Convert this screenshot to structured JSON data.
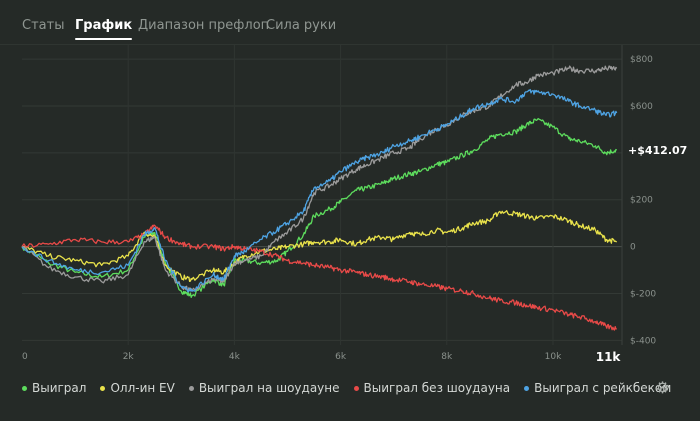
{
  "tabs": [
    {
      "label": "Статы",
      "active": false
    },
    {
      "label": "График",
      "active": true
    },
    {
      "label": "Диапазон префлоп",
      "active": false
    },
    {
      "label": "Сила руки",
      "active": false
    }
  ],
  "settings_icon": "gear-icon",
  "chart_data": {
    "type": "line",
    "x_unit": "hands",
    "xlim": [
      0,
      11300
    ],
    "ylim": [
      -420,
      860
    ],
    "x_ticks": [
      {
        "value": 0,
        "label": "0"
      },
      {
        "value": 2000,
        "label": "2k"
      },
      {
        "value": 4000,
        "label": "4k"
      },
      {
        "value": 6000,
        "label": "6k"
      },
      {
        "value": 8000,
        "label": "8k"
      },
      {
        "value": 10000,
        "label": "10k"
      },
      {
        "value": 11000,
        "label": "11k"
      }
    ],
    "y_ticks": [
      {
        "value": 800,
        "label": "$800"
      },
      {
        "value": 600,
        "label": "$600"
      },
      {
        "value": 200,
        "label": "$200"
      },
      {
        "value": 0,
        "label": "0"
      },
      {
        "value": -200,
        "label": "$-200"
      },
      {
        "value": -400,
        "label": "$-400"
      }
    ],
    "gridlines_y": [
      800,
      600,
      400,
      200,
      0,
      -200,
      -400
    ],
    "end_label": "+$412.07",
    "end_label_value": 412.07,
    "grid": true,
    "legend_position": "bottom",
    "series": [
      {
        "name": "Выиграл",
        "color": "#5ddc5d",
        "x": [
          0,
          500,
          1000,
          1500,
          2000,
          2300,
          2500,
          2700,
          3000,
          3200,
          3600,
          3800,
          4000,
          4200,
          4500,
          4800,
          5000,
          5300,
          5500,
          5800,
          6000,
          6300,
          6500,
          6800,
          7000,
          7300,
          7500,
          7800,
          8000,
          8300,
          8500,
          8800,
          9000,
          9300,
          9500,
          9700,
          10000,
          10300,
          10500,
          10800,
          11000,
          11200
        ],
        "y": [
          0,
          -70,
          -110,
          -130,
          -100,
          40,
          60,
          -70,
          -190,
          -210,
          -140,
          -165,
          -60,
          -60,
          -70,
          -60,
          -20,
          50,
          130,
          160,
          190,
          240,
          250,
          270,
          290,
          310,
          320,
          350,
          360,
          390,
          410,
          460,
          480,
          490,
          520,
          540,
          510,
          460,
          450,
          430,
          400,
          412
        ]
      },
      {
        "name": "Олл-ин EV",
        "color": "#e9e24b",
        "x": [
          0,
          500,
          1000,
          1500,
          2000,
          2300,
          2500,
          2700,
          3000,
          3200,
          3600,
          3800,
          4000,
          4200,
          4500,
          4800,
          5000,
          5300,
          5500,
          5800,
          6000,
          6300,
          6500,
          6800,
          7000,
          7300,
          7500,
          7800,
          8000,
          8300,
          8500,
          8800,
          9000,
          9300,
          9500,
          9700,
          10000,
          10300,
          10500,
          10800,
          11000,
          11200
        ],
        "y": [
          0,
          -40,
          -60,
          -80,
          -40,
          60,
          40,
          -80,
          -130,
          -140,
          -100,
          -110,
          -70,
          -40,
          -20,
          -10,
          0,
          10,
          20,
          20,
          30,
          10,
          30,
          40,
          30,
          60,
          50,
          70,
          60,
          80,
          100,
          110,
          150,
          140,
          130,
          120,
          130,
          110,
          90,
          70,
          30,
          20
        ]
      },
      {
        "name": "Выиграл на шоудауне",
        "color": "#9b9b9b",
        "x": [
          0,
          500,
          1000,
          1500,
          2000,
          2300,
          2500,
          2700,
          3000,
          3200,
          3600,
          3800,
          4000,
          4200,
          4500,
          4800,
          5000,
          5300,
          5500,
          5800,
          6000,
          6300,
          6500,
          6800,
          7000,
          7300,
          7500,
          7800,
          8000,
          8300,
          8500,
          8800,
          9000,
          9300,
          9500,
          9700,
          10000,
          10300,
          10500,
          10800,
          11000,
          11200
        ],
        "y": [
          0,
          -90,
          -130,
          -150,
          -120,
          20,
          40,
          -100,
          -170,
          -190,
          -140,
          -150,
          -70,
          -60,
          -40,
          30,
          60,
          120,
          230,
          260,
          290,
          330,
          350,
          380,
          400,
          420,
          460,
          500,
          520,
          560,
          580,
          600,
          640,
          690,
          700,
          730,
          740,
          760,
          750,
          750,
          760,
          760
        ]
      },
      {
        "name": "Выиграл без шоудауна",
        "color": "#e84a48",
        "x": [
          0,
          500,
          1000,
          1500,
          2000,
          2300,
          2500,
          2700,
          3000,
          3200,
          3600,
          3800,
          4000,
          4200,
          4500,
          4800,
          5000,
          5300,
          5500,
          5800,
          6000,
          6300,
          6500,
          6800,
          7000,
          7300,
          7500,
          7800,
          8000,
          8300,
          8500,
          8800,
          9000,
          9300,
          9500,
          9700,
          10000,
          10300,
          10500,
          10800,
          11000,
          11200
        ],
        "y": [
          0,
          10,
          30,
          20,
          20,
          50,
          90,
          40,
          10,
          0,
          0,
          -10,
          0,
          -10,
          -20,
          -40,
          -60,
          -70,
          -80,
          -90,
          -100,
          -110,
          -120,
          -130,
          -140,
          -150,
          -160,
          -170,
          -180,
          -190,
          -200,
          -220,
          -230,
          -240,
          -250,
          -260,
          -270,
          -290,
          -300,
          -320,
          -340,
          -350
        ]
      },
      {
        "name": "Выиграл с рейкбеком",
        "color": "#4ea3e3",
        "x": [
          0,
          500,
          1000,
          1500,
          2000,
          2300,
          2500,
          2700,
          3000,
          3200,
          3600,
          3800,
          4000,
          4200,
          4500,
          4800,
          5000,
          5300,
          5500,
          5800,
          6000,
          6300,
          6500,
          6800,
          7000,
          7300,
          7500,
          7800,
          8000,
          8300,
          8500,
          8800,
          9000,
          9300,
          9500,
          9700,
          10000,
          10300,
          10500,
          10800,
          11000,
          11200
        ],
        "y": [
          0,
          -60,
          -100,
          -110,
          -80,
          50,
          80,
          -60,
          -170,
          -190,
          -120,
          -140,
          -40,
          -20,
          30,
          70,
          100,
          150,
          250,
          280,
          320,
          360,
          380,
          400,
          430,
          450,
          470,
          500,
          520,
          560,
          590,
          610,
          630,
          620,
          660,
          660,
          650,
          620,
          600,
          580,
          560,
          570
        ]
      }
    ]
  }
}
